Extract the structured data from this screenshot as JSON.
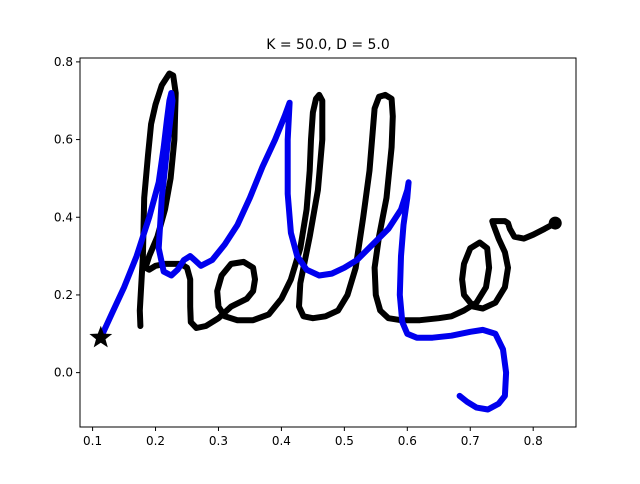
{
  "chart_data": {
    "type": "line",
    "title": "K = 50.0, D = 5.0",
    "xlabel": "",
    "ylabel": "",
    "xlim": [
      0.08,
      0.868
    ],
    "ylim": [
      -0.14,
      0.81
    ],
    "xticks": [
      {
        "v": 0.1,
        "label": "0.1"
      },
      {
        "v": 0.2,
        "label": "0.2"
      },
      {
        "v": 0.3,
        "label": "0.3"
      },
      {
        "v": 0.4,
        "label": "0.4"
      },
      {
        "v": 0.5,
        "label": "0.5"
      },
      {
        "v": 0.6,
        "label": "0.6"
      },
      {
        "v": 0.7,
        "label": "0.7"
      },
      {
        "v": 0.8,
        "label": "0.8"
      }
    ],
    "yticks": [
      {
        "v": 0.0,
        "label": "0.0"
      },
      {
        "v": 0.2,
        "label": "0.2"
      },
      {
        "v": 0.4,
        "label": "0.4"
      },
      {
        "v": 0.6,
        "label": "0.6"
      },
      {
        "v": 0.8,
        "label": "0.8"
      }
    ],
    "grid": false,
    "series": [
      {
        "color": "#000000",
        "points": [
          [
            0.176,
            0.12
          ],
          [
            0.175,
            0.16
          ],
          [
            0.18,
            0.3
          ],
          [
            0.182,
            0.45
          ],
          [
            0.188,
            0.56
          ],
          [
            0.193,
            0.64
          ],
          [
            0.2,
            0.69
          ],
          [
            0.21,
            0.74
          ],
          [
            0.222,
            0.77
          ],
          [
            0.228,
            0.765
          ],
          [
            0.232,
            0.72
          ],
          [
            0.23,
            0.6
          ],
          [
            0.224,
            0.5
          ],
          [
            0.215,
            0.42
          ],
          [
            0.203,
            0.35
          ],
          [
            0.19,
            0.3
          ],
          [
            0.184,
            0.27
          ],
          [
            0.19,
            0.265
          ],
          [
            0.2,
            0.275
          ],
          [
            0.215,
            0.28
          ],
          [
            0.24,
            0.28
          ],
          [
            0.25,
            0.27
          ],
          [
            0.255,
            0.24
          ],
          [
            0.255,
            0.17
          ],
          [
            0.256,
            0.13
          ],
          [
            0.265,
            0.115
          ],
          [
            0.28,
            0.12
          ],
          [
            0.3,
            0.14
          ],
          [
            0.32,
            0.17
          ],
          [
            0.345,
            0.19
          ],
          [
            0.355,
            0.21
          ],
          [
            0.358,
            0.24
          ],
          [
            0.355,
            0.27
          ],
          [
            0.34,
            0.285
          ],
          [
            0.32,
            0.28
          ],
          [
            0.305,
            0.25
          ],
          [
            0.298,
            0.21
          ],
          [
            0.3,
            0.17
          ],
          [
            0.31,
            0.145
          ],
          [
            0.33,
            0.135
          ],
          [
            0.355,
            0.135
          ],
          [
            0.38,
            0.15
          ],
          [
            0.4,
            0.19
          ],
          [
            0.415,
            0.24
          ],
          [
            0.43,
            0.32
          ],
          [
            0.44,
            0.42
          ],
          [
            0.445,
            0.52
          ],
          [
            0.447,
            0.6
          ],
          [
            0.45,
            0.67
          ],
          [
            0.455,
            0.705
          ],
          [
            0.46,
            0.715
          ],
          [
            0.465,
            0.7
          ],
          [
            0.465,
            0.6
          ],
          [
            0.458,
            0.47
          ],
          [
            0.445,
            0.35
          ],
          [
            0.43,
            0.23
          ],
          [
            0.428,
            0.17
          ],
          [
            0.435,
            0.145
          ],
          [
            0.45,
            0.14
          ],
          [
            0.47,
            0.145
          ],
          [
            0.49,
            0.16
          ],
          [
            0.505,
            0.2
          ],
          [
            0.518,
            0.27
          ],
          [
            0.53,
            0.4
          ],
          [
            0.54,
            0.52
          ],
          [
            0.545,
            0.62
          ],
          [
            0.548,
            0.68
          ],
          [
            0.555,
            0.71
          ],
          [
            0.565,
            0.715
          ],
          [
            0.575,
            0.705
          ],
          [
            0.577,
            0.66
          ],
          [
            0.575,
            0.58
          ],
          [
            0.567,
            0.45
          ],
          [
            0.555,
            0.35
          ],
          [
            0.548,
            0.27
          ],
          [
            0.55,
            0.2
          ],
          [
            0.557,
            0.16
          ],
          [
            0.57,
            0.14
          ],
          [
            0.59,
            0.135
          ],
          [
            0.62,
            0.135
          ],
          [
            0.65,
            0.14
          ],
          [
            0.67,
            0.145
          ],
          [
            0.69,
            0.16
          ],
          [
            0.71,
            0.18
          ],
          [
            0.725,
            0.22
          ],
          [
            0.73,
            0.27
          ],
          [
            0.727,
            0.32
          ],
          [
            0.715,
            0.335
          ],
          [
            0.7,
            0.32
          ],
          [
            0.69,
            0.28
          ],
          [
            0.687,
            0.24
          ],
          [
            0.69,
            0.2
          ],
          [
            0.705,
            0.17
          ],
          [
            0.72,
            0.165
          ],
          [
            0.74,
            0.18
          ],
          [
            0.755,
            0.22
          ],
          [
            0.76,
            0.27
          ],
          [
            0.755,
            0.31
          ],
          [
            0.745,
            0.345
          ],
          [
            0.737,
            0.38
          ],
          [
            0.735,
            0.39
          ],
          [
            0.755,
            0.39
          ],
          [
            0.76,
            0.385
          ],
          [
            0.763,
            0.37
          ],
          [
            0.77,
            0.35
          ],
          [
            0.785,
            0.345
          ],
          [
            0.8,
            0.355
          ],
          [
            0.818,
            0.37
          ],
          [
            0.835,
            0.385
          ]
        ]
      },
      {
        "color": "#0000ee",
        "points": [
          [
            0.113,
            0.09
          ],
          [
            0.13,
            0.15
          ],
          [
            0.15,
            0.22
          ],
          [
            0.17,
            0.3
          ],
          [
            0.19,
            0.4
          ],
          [
            0.205,
            0.49
          ],
          [
            0.213,
            0.58
          ],
          [
            0.218,
            0.65
          ],
          [
            0.222,
            0.7
          ],
          [
            0.225,
            0.72
          ],
          [
            0.227,
            0.7
          ],
          [
            0.22,
            0.6
          ],
          [
            0.21,
            0.45
          ],
          [
            0.205,
            0.32
          ],
          [
            0.213,
            0.26
          ],
          [
            0.225,
            0.25
          ],
          [
            0.235,
            0.265
          ],
          [
            0.245,
            0.29
          ],
          [
            0.255,
            0.3
          ],
          [
            0.262,
            0.29
          ],
          [
            0.272,
            0.275
          ],
          [
            0.29,
            0.29
          ],
          [
            0.31,
            0.33
          ],
          [
            0.33,
            0.38
          ],
          [
            0.35,
            0.45
          ],
          [
            0.37,
            0.53
          ],
          [
            0.39,
            0.6
          ],
          [
            0.405,
            0.66
          ],
          [
            0.413,
            0.695
          ],
          [
            0.41,
            0.6
          ],
          [
            0.41,
            0.46
          ],
          [
            0.415,
            0.36
          ],
          [
            0.425,
            0.3
          ],
          [
            0.44,
            0.265
          ],
          [
            0.46,
            0.25
          ],
          [
            0.48,
            0.255
          ],
          [
            0.5,
            0.27
          ],
          [
            0.52,
            0.29
          ],
          [
            0.545,
            0.33
          ],
          [
            0.57,
            0.37
          ],
          [
            0.59,
            0.42
          ],
          [
            0.6,
            0.47
          ],
          [
            0.602,
            0.49
          ],
          [
            0.6,
            0.45
          ],
          [
            0.594,
            0.38
          ],
          [
            0.59,
            0.3
          ],
          [
            0.588,
            0.2
          ],
          [
            0.592,
            0.13
          ],
          [
            0.6,
            0.1
          ],
          [
            0.615,
            0.09
          ],
          [
            0.64,
            0.09
          ],
          [
            0.67,
            0.095
          ],
          [
            0.7,
            0.105
          ],
          [
            0.72,
            0.11
          ],
          [
            0.74,
            0.1
          ],
          [
            0.752,
            0.06
          ],
          [
            0.757,
            0.0
          ],
          [
            0.755,
            -0.06
          ],
          [
            0.745,
            -0.08
          ],
          [
            0.728,
            -0.095
          ],
          [
            0.71,
            -0.09
          ],
          [
            0.695,
            -0.075
          ],
          [
            0.683,
            -0.06
          ]
        ]
      }
    ],
    "markers": [
      {
        "type": "star",
        "x": 0.113,
        "y": 0.09
      },
      {
        "type": "circle",
        "x": 0.835,
        "y": 0.385
      }
    ]
  }
}
